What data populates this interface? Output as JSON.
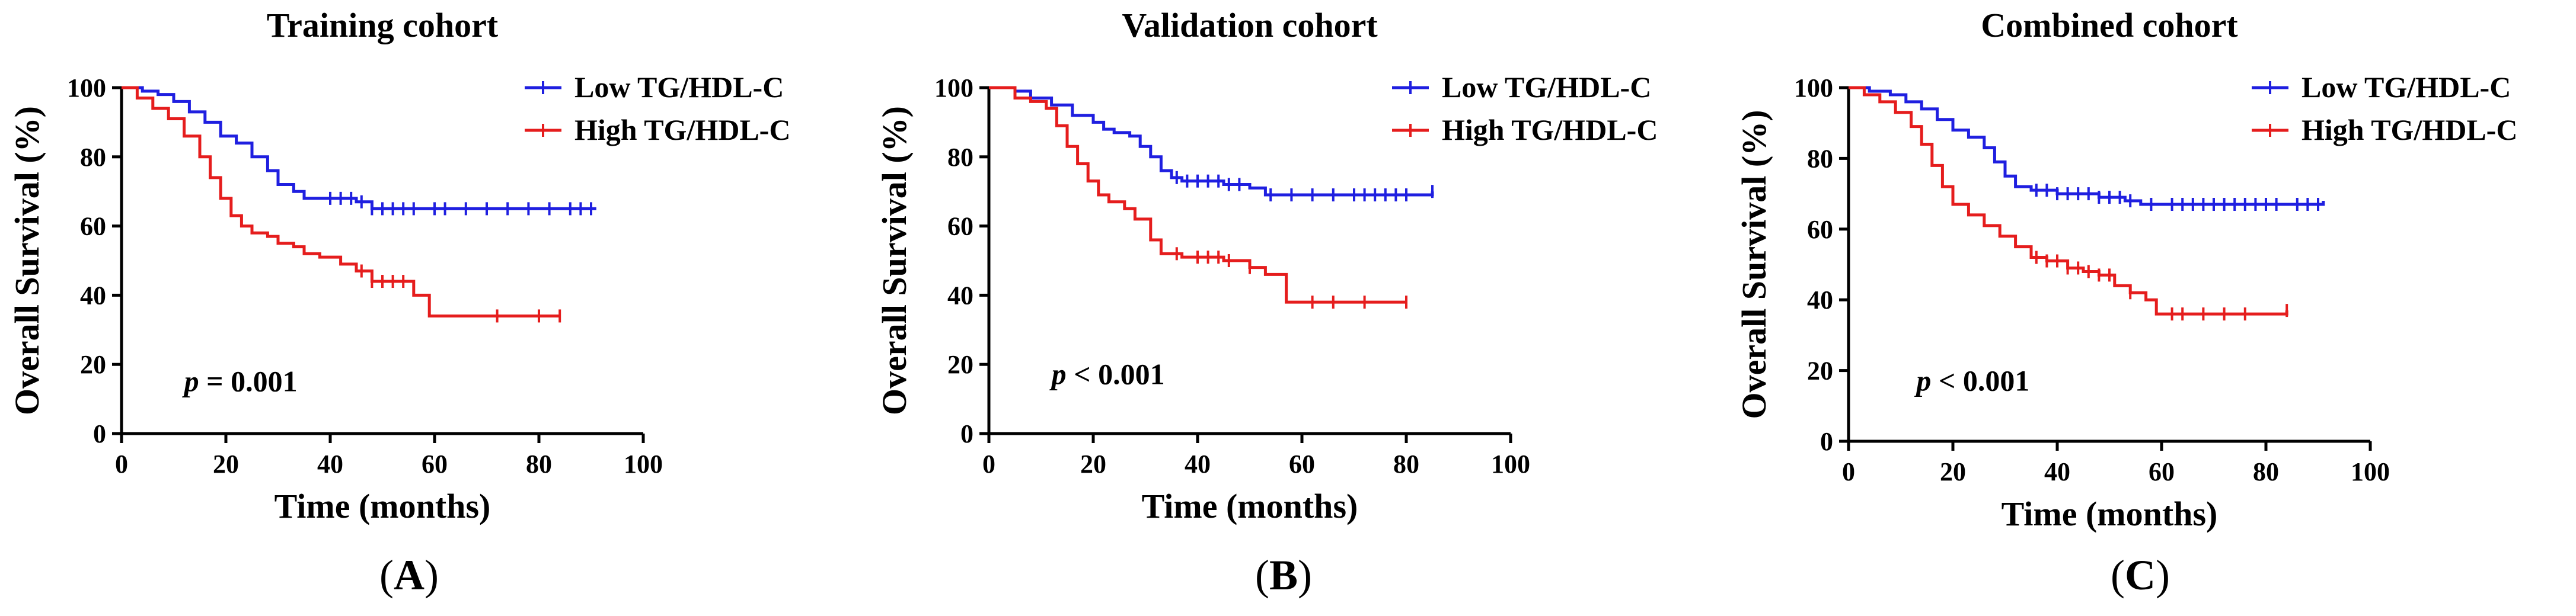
{
  "figure": {
    "panel_labels": [
      "A",
      "B",
      "C"
    ]
  },
  "colors": {
    "low": "#1f1fe0",
    "high": "#e51d1d",
    "axis": "#000000"
  },
  "chart_data": [
    {
      "type": "line",
      "title": "Training cohort",
      "xlabel": "Time (months)",
      "ylabel": "Overall Survival (%)",
      "xlim": [
        0,
        100
      ],
      "ylim": [
        0,
        100
      ],
      "xticks": [
        0,
        20,
        40,
        60,
        80,
        100
      ],
      "yticks": [
        0,
        20,
        40,
        60,
        80,
        100
      ],
      "legend_position": "top-right",
      "annotation": {
        "italic": "p",
        "text": " = 0.001",
        "x": 12,
        "y": 15
      },
      "series": [
        {
          "name": "Low TG/HDL-C",
          "color": "#1f1fe0",
          "points": [
            [
              0,
              100
            ],
            [
              4,
              99
            ],
            [
              7,
              98
            ],
            [
              10,
              96
            ],
            [
              13,
              93
            ],
            [
              16,
              90
            ],
            [
              19,
              86
            ],
            [
              22,
              84
            ],
            [
              25,
              80
            ],
            [
              28,
              76
            ],
            [
              30,
              72
            ],
            [
              33,
              70
            ],
            [
              35,
              68
            ],
            [
              40,
              68
            ],
            [
              45,
              67
            ],
            [
              48,
              65
            ],
            [
              55,
              65
            ],
            [
              60,
              65
            ],
            [
              70,
              65
            ],
            [
              80,
              65
            ],
            [
              91,
              65
            ]
          ],
          "censors": [
            40,
            42,
            44,
            46,
            48,
            50,
            52,
            54,
            56,
            60,
            62,
            66,
            70,
            74,
            78,
            82,
            86,
            88,
            90
          ]
        },
        {
          "name": "High TG/HDL-C",
          "color": "#e51d1d",
          "points": [
            [
              0,
              100
            ],
            [
              3,
              97
            ],
            [
              6,
              94
            ],
            [
              9,
              91
            ],
            [
              12,
              86
            ],
            [
              15,
              80
            ],
            [
              17,
              74
            ],
            [
              19,
              68
            ],
            [
              21,
              63
            ],
            [
              23,
              60
            ],
            [
              25,
              58
            ],
            [
              28,
              57
            ],
            [
              30,
              55
            ],
            [
              33,
              54
            ],
            [
              35,
              52
            ],
            [
              38,
              51
            ],
            [
              42,
              49
            ],
            [
              45,
              47
            ],
            [
              48,
              44
            ],
            [
              54,
              44
            ],
            [
              56,
              40
            ],
            [
              59,
              40
            ],
            [
              59,
              34
            ],
            [
              70,
              34
            ],
            [
              84,
              34
            ]
          ],
          "censors": [
            46,
            48,
            50,
            52,
            54,
            72,
            80,
            84
          ]
        }
      ]
    },
    {
      "type": "line",
      "title": "Validation cohort",
      "xlabel": "Time (months)",
      "ylabel": "Overall Survival (%)",
      "xlim": [
        0,
        100
      ],
      "ylim": [
        0,
        100
      ],
      "xticks": [
        0,
        20,
        40,
        60,
        80,
        100
      ],
      "yticks": [
        0,
        20,
        40,
        60,
        80,
        100
      ],
      "legend_position": "top-right",
      "annotation": {
        "italic": "p",
        "text": " < 0.001",
        "x": 12,
        "y": 17
      },
      "series": [
        {
          "name": "Low TG/HDL-C",
          "color": "#1f1fe0",
          "points": [
            [
              0,
              100
            ],
            [
              5,
              99
            ],
            [
              8,
              97
            ],
            [
              12,
              95
            ],
            [
              16,
              92
            ],
            [
              20,
              90
            ],
            [
              22,
              88
            ],
            [
              24,
              87
            ],
            [
              27,
              86
            ],
            [
              29,
              83
            ],
            [
              31,
              80
            ],
            [
              33,
              76
            ],
            [
              35,
              74
            ],
            [
              37,
              73
            ],
            [
              45,
              72
            ],
            [
              50,
              71
            ],
            [
              53,
              69
            ],
            [
              60,
              69
            ],
            [
              70,
              69
            ],
            [
              85,
              70
            ]
          ],
          "censors": [
            36,
            38,
            40,
            42,
            44,
            46,
            48,
            54,
            58,
            62,
            66,
            70,
            72,
            74,
            76,
            78,
            80,
            85
          ]
        },
        {
          "name": "High TG/HDL-C",
          "color": "#e51d1d",
          "points": [
            [
              0,
              100
            ],
            [
              5,
              97
            ],
            [
              8,
              96
            ],
            [
              11,
              94
            ],
            [
              13,
              89
            ],
            [
              15,
              83
            ],
            [
              17,
              78
            ],
            [
              19,
              73
            ],
            [
              21,
              69
            ],
            [
              23,
              67
            ],
            [
              26,
              65
            ],
            [
              28,
              62
            ],
            [
              31,
              56
            ],
            [
              33,
              52
            ],
            [
              37,
              51
            ],
            [
              45,
              50
            ],
            [
              50,
              48
            ],
            [
              53,
              46
            ],
            [
              57,
              45
            ],
            [
              57,
              38
            ],
            [
              65,
              38
            ],
            [
              80,
              38
            ]
          ],
          "censors": [
            36,
            40,
            42,
            44,
            46,
            50,
            62,
            66,
            72,
            80
          ]
        }
      ]
    },
    {
      "type": "line",
      "title": "Combined cohort",
      "xlabel": "Time (months)",
      "ylabel": "Overall Survival (%)",
      "xlim": [
        0,
        100
      ],
      "ylim": [
        0,
        100
      ],
      "xticks": [
        0,
        20,
        40,
        60,
        80,
        100
      ],
      "yticks": [
        0,
        20,
        40,
        60,
        80,
        100
      ],
      "legend_position": "top-right",
      "annotation": {
        "italic": "p",
        "text": " < 0.001",
        "x": 13,
        "y": 17
      },
      "series": [
        {
          "name": "Low TG/HDL-C",
          "color": "#1f1fe0",
          "points": [
            [
              0,
              100
            ],
            [
              4,
              99
            ],
            [
              8,
              98
            ],
            [
              11,
              96
            ],
            [
              14,
              94
            ],
            [
              17,
              91
            ],
            [
              20,
              88
            ],
            [
              23,
              86
            ],
            [
              26,
              83
            ],
            [
              28,
              79
            ],
            [
              30,
              75
            ],
            [
              32,
              72
            ],
            [
              35,
              71
            ],
            [
              40,
              70
            ],
            [
              45,
              70
            ],
            [
              48,
              69
            ],
            [
              53,
              68
            ],
            [
              56,
              67
            ],
            [
              60,
              67
            ],
            [
              70,
              67
            ],
            [
              80,
              67
            ],
            [
              91,
              68
            ]
          ],
          "censors": [
            36,
            38,
            40,
            42,
            44,
            46,
            48,
            50,
            52,
            54,
            58,
            62,
            64,
            66,
            68,
            70,
            72,
            74,
            76,
            78,
            80,
            82,
            86,
            88,
            90
          ]
        },
        {
          "name": "High TG/HDL-C",
          "color": "#e51d1d",
          "points": [
            [
              0,
              100
            ],
            [
              3,
              98
            ],
            [
              6,
              96
            ],
            [
              9,
              93
            ],
            [
              12,
              89
            ],
            [
              14,
              84
            ],
            [
              16,
              78
            ],
            [
              18,
              72
            ],
            [
              20,
              67
            ],
            [
              23,
              64
            ],
            [
              26,
              61
            ],
            [
              29,
              58
            ],
            [
              32,
              55
            ],
            [
              35,
              52
            ],
            [
              38,
              51
            ],
            [
              42,
              49
            ],
            [
              45,
              48
            ],
            [
              48,
              47
            ],
            [
              51,
              44
            ],
            [
              54,
              42
            ],
            [
              57,
              40
            ],
            [
              59,
              36
            ],
            [
              70,
              36
            ],
            [
              84,
              37
            ]
          ],
          "censors": [
            36,
            38,
            40,
            42,
            44,
            46,
            48,
            50,
            54,
            62,
            64,
            68,
            72,
            76,
            84
          ]
        }
      ]
    }
  ]
}
